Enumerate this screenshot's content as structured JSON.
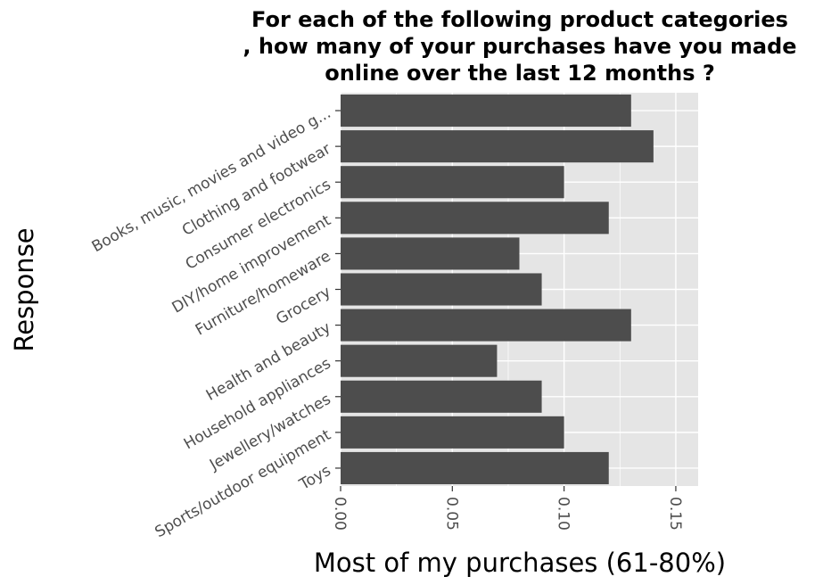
{
  "chart_data": {
    "type": "bar",
    "orientation": "horizontal",
    "title_lines": [
      "For each of the following product categories",
      ", how many of your purchases have you made",
      "online over the last 12 months ?"
    ],
    "xlabel": "Most of my purchases (61-80%)",
    "ylabel": "Response",
    "categories": [
      "Books, music, movies and video g...",
      "Clothing and footwear",
      "Consumer electronics",
      "DIY/home improvement",
      "Furniture/homeware",
      "Grocery",
      "Health and beauty",
      "Household appliances",
      "Jewellery/watches",
      "Sports/outdoor equipment",
      "Toys"
    ],
    "values": [
      0.13,
      0.14,
      0.1,
      0.12,
      0.08,
      0.09,
      0.13,
      0.07,
      0.09,
      0.1,
      0.12
    ],
    "xticks": [
      "0.00",
      "0.05",
      "0.10",
      "0.15"
    ],
    "xtick_values": [
      0,
      0.05,
      0.1,
      0.15
    ],
    "xlim": [
      0,
      0.16
    ],
    "grid": true,
    "legend": "none",
    "colors": {
      "bar": "#4d4d4d",
      "panel": "#e5e5e5",
      "grid": "#ffffff",
      "tick_label": "#4d4d4d"
    }
  }
}
